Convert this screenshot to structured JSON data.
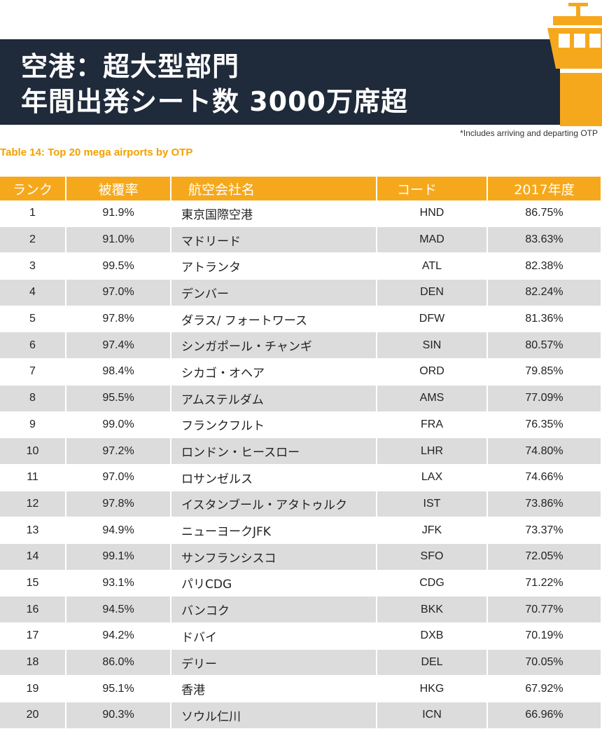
{
  "title": {
    "line1": "空港：超大型部門",
    "line2": "年間出発シート数 3000万席超"
  },
  "note": "*Includes arriving and departing OTP",
  "table_caption": "Table 14: Top 20 mega airports by OTP",
  "colors": {
    "banner": "#1f2a3a",
    "accent": "#f6a81d",
    "stripe": "#dcdcdc"
  },
  "icons": [
    "control-tower-icon"
  ],
  "table": {
    "headers": [
      "ランク",
      "被覆率",
      "航空会社名",
      "コード",
      "2017年度"
    ],
    "rows": [
      {
        "rank": "1",
        "coverage": "91.9%",
        "name": "東京国際空港",
        "code": "HND",
        "otp": "86.75%"
      },
      {
        "rank": "2",
        "coverage": "91.0%",
        "name": "マドリード",
        "code": "MAD",
        "otp": "83.63%"
      },
      {
        "rank": "3",
        "coverage": "99.5%",
        "name": "アトランタ",
        "code": "ATL",
        "otp": "82.38%"
      },
      {
        "rank": "4",
        "coverage": "97.0%",
        "name": "デンバー",
        "code": "DEN",
        "otp": "82.24%"
      },
      {
        "rank": "5",
        "coverage": "97.8%",
        "name": "ダラス/ フォートワース",
        "code": "DFW",
        "otp": "81.36%"
      },
      {
        "rank": "6",
        "coverage": "97.4%",
        "name": "シンガポール・チャンギ",
        "code": "SIN",
        "otp": "80.57%"
      },
      {
        "rank": "7",
        "coverage": "98.4%",
        "name": "シカゴ・オヘア",
        "code": "ORD",
        "otp": "79.85%"
      },
      {
        "rank": "8",
        "coverage": "95.5%",
        "name": "アムステルダム",
        "code": "AMS",
        "otp": "77.09%"
      },
      {
        "rank": "9",
        "coverage": "99.0%",
        "name": "フランクフルト",
        "code": "FRA",
        "otp": "76.35%"
      },
      {
        "rank": "10",
        "coverage": "97.2%",
        "name": "ロンドン・ヒースロー",
        "code": "LHR",
        "otp": "74.80%"
      },
      {
        "rank": "11",
        "coverage": "97.0%",
        "name": "ロサンゼルス",
        "code": "LAX",
        "otp": "74.66%"
      },
      {
        "rank": "12",
        "coverage": "97.8%",
        "name": "イスタンブール・アタトゥルク",
        "code": "IST",
        "otp": "73.86%"
      },
      {
        "rank": "13",
        "coverage": "94.9%",
        "name": "ニューヨークJFK",
        "code": "JFK",
        "otp": "73.37%"
      },
      {
        "rank": "14",
        "coverage": "99.1%",
        "name": "サンフランシスコ",
        "code": "SFO",
        "otp": "72.05%"
      },
      {
        "rank": "15",
        "coverage": "93.1%",
        "name": "パリCDG",
        "code": "CDG",
        "otp": "71.22%"
      },
      {
        "rank": "16",
        "coverage": "94.5%",
        "name": "バンコク",
        "code": "BKK",
        "otp": "70.77%"
      },
      {
        "rank": "17",
        "coverage": "94.2%",
        "name": "ドバイ",
        "code": "DXB",
        "otp": "70.19%"
      },
      {
        "rank": "18",
        "coverage": "86.0%",
        "name": "デリー",
        "code": "DEL",
        "otp": "70.05%"
      },
      {
        "rank": "19",
        "coverage": "95.1%",
        "name": "香港",
        "code": "HKG",
        "otp": "67.92%"
      },
      {
        "rank": "20",
        "coverage": "90.3%",
        "name": "ソウル仁川",
        "code": "ICN",
        "otp": "66.96%"
      }
    ]
  }
}
